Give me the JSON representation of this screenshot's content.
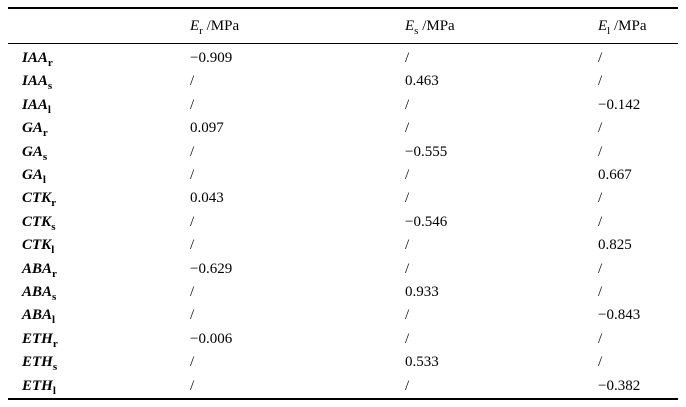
{
  "page": {
    "background": "#ffffff",
    "text_color": "#000000"
  },
  "table": {
    "description": "correlation table of hormone levels vs elastic modulus",
    "columns": [
      {
        "symbol": "E",
        "sub": "r",
        "unit": " /MPa"
      },
      {
        "symbol": "E",
        "sub": "s",
        "unit": " /MPa"
      },
      {
        "symbol": "E",
        "sub": "l",
        "unit": " /MPa"
      }
    ],
    "rows": [
      {
        "hormone": "IAA",
        "organ": "r",
        "er": "−0.909",
        "es": "/",
        "el": "/"
      },
      {
        "hormone": "IAA",
        "organ": "s",
        "er": "/",
        "es": "0.463",
        "el": "/"
      },
      {
        "hormone": "IAA",
        "organ": "l",
        "er": "/",
        "es": "/",
        "el": "−0.142"
      },
      {
        "hormone": "GA",
        "organ": "r",
        "er": "0.097",
        "es": "/",
        "el": "/"
      },
      {
        "hormone": "GA",
        "organ": "s",
        "er": "/",
        "es": "−0.555",
        "el": "/"
      },
      {
        "hormone": "GA",
        "organ": "l",
        "er": "/",
        "es": "/",
        "el": "0.667"
      },
      {
        "hormone": "CTK",
        "organ": "r",
        "er": "0.043",
        "es": "/",
        "el": "/"
      },
      {
        "hormone": "CTK",
        "organ": "s",
        "er": "/",
        "es": "−0.546",
        "el": "/"
      },
      {
        "hormone": "CTK",
        "organ": "l",
        "er": "/",
        "es": "/",
        "el": "0.825"
      },
      {
        "hormone": "ABA",
        "organ": "r",
        "er": "−0.629",
        "es": "/",
        "el": "/"
      },
      {
        "hormone": "ABA",
        "organ": "s",
        "er": "/",
        "es": "0.933",
        "el": "/"
      },
      {
        "hormone": "ABA",
        "organ": "l",
        "er": "/",
        "es": "/",
        "el": "−0.843"
      },
      {
        "hormone": "ETH",
        "organ": "r",
        "er": "−0.006",
        "es": "/",
        "el": "/"
      },
      {
        "hormone": "ETH",
        "organ": "s",
        "er": "/",
        "es": "0.533",
        "el": "/"
      },
      {
        "hormone": "ETH",
        "organ": "l",
        "er": "/",
        "es": "/",
        "el": "−0.382"
      }
    ]
  }
}
